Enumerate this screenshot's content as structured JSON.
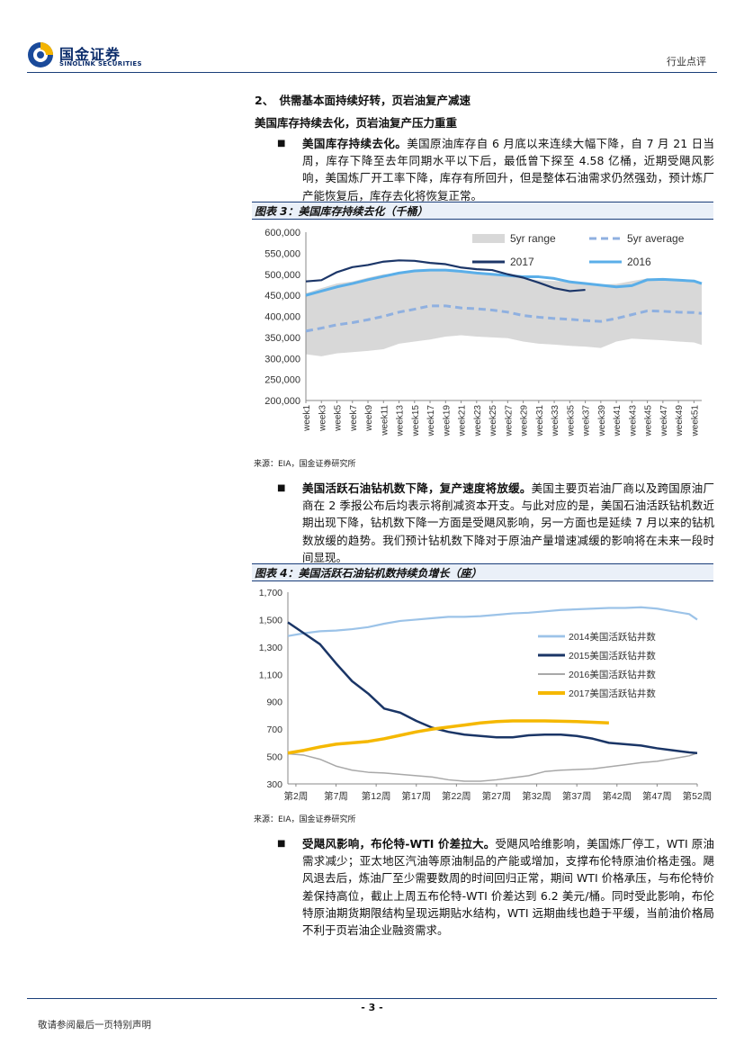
{
  "header": {
    "logo_cn": "国金证券",
    "logo_en": "SINOLINK SECURITIES",
    "report_type": "行业点评"
  },
  "section": {
    "title": "2、　供需基本面持续好转，页岩油复产减速",
    "subtitle": "美国库存持续去化，页岩油复产压力重重"
  },
  "para1": {
    "bold": "美国库存持续去化。",
    "text": "美国原油库存自 6 月底以来连续大幅下降，自 7 月 21 日当周，库存下降至去年同期水平以下后，最低曾下探至 4.58 亿桶，近期受飓风影响，美国炼厂开工率下降，库存有所回升，但是整体石油需求仍然强劲，预计炼厂产能恢复后，库存去化将恢复正常。"
  },
  "fig3": {
    "caption": "图表 3：美国库存持续去化（千桶）",
    "source": "来源：EIA，国金证券研究所"
  },
  "para2": {
    "bold": "美国活跃石油钻机数下降，复产速度将放缓。",
    "text": "美国主要页岩油厂商以及跨国原油厂商在 2 季报公布后均表示将削减资本开支。与此对应的是，美国石油活跃钻机数近期出现下降，钻机数下降一方面是受飓风影响，另一方面也是延续 7 月以来的钻机数放缓的趋势。我们预计钻机数下降对于原油产量增速减缓的影响将在未来一段时间显现。"
  },
  "fig4": {
    "caption": "图表 4：美国活跃石油钻机数持续负增长（座）",
    "source": "来源：EIA，国金证券研究所"
  },
  "para3": {
    "bold": "受飓风影响，布伦特-WTI 价差拉大。",
    "text": "受飓风哈维影响，美国炼厂停工，WTI 原油需求减少；亚太地区汽油等原油制品的产能或增加，支撑布伦特原油价格走强。飓风退去后，炼油厂至少需要数周的时间回归正常，期间 WTI 价格承压，与布伦特价差保持高位，截止上周五布伦特-WTI 价差达到 6.2 美元/桶。同时受此影响，布伦特原油期货期限结构呈现远期贴水结构，WTI 远期曲线也趋于平缓，当前油价格局不利于页岩油企业融资需求。"
  },
  "footer": {
    "page": "- 3 -",
    "note": "敬请参阅最后一页特别声明"
  },
  "colors": {
    "navy": "#1c3668",
    "light_blue": "#5aaee8",
    "dash_blue": "#8fb0e0",
    "band_gray": "#d8d8d8",
    "rig_2014": "#9cc3e8",
    "rig_2015": "#1a3566",
    "rig_2016": "#a8a8a8",
    "rig_2017": "#f5b800"
  },
  "chart_data": [
    {
      "type": "area",
      "title": "美国库存持续去化（千桶）",
      "ylim": [
        200000,
        600000
      ],
      "yticks": [
        200000,
        250000,
        300000,
        350000,
        400000,
        450000,
        500000,
        550000,
        600000
      ],
      "ytick_labels": [
        "200,000",
        "250,000",
        "300,000",
        "350,000",
        "400,000",
        "450,000",
        "500,000",
        "550,000",
        "600,000"
      ],
      "xtick_labels": [
        "week1",
        "week3",
        "week5",
        "week7",
        "week9",
        "week11",
        "week13",
        "week15",
        "week17",
        "week19",
        "week21",
        "week23",
        "week25",
        "week27",
        "week29",
        "week31",
        "week33",
        "week35",
        "week37",
        "week39",
        "week41",
        "week43",
        "week45",
        "week47",
        "week49",
        "week51"
      ],
      "legend": [
        "5yr range",
        "5yr average",
        "2017",
        "2016"
      ],
      "x": [
        1,
        3,
        5,
        7,
        9,
        11,
        13,
        15,
        17,
        19,
        21,
        23,
        25,
        27,
        29,
        31,
        33,
        35,
        37,
        39,
        41,
        43,
        45,
        47,
        49,
        51,
        52
      ],
      "series": [
        {
          "name": "5yr range low",
          "values": [
            310000,
            305000,
            312000,
            315000,
            318000,
            322000,
            335000,
            340000,
            345000,
            352000,
            355000,
            352000,
            350000,
            348000,
            340000,
            335000,
            333000,
            330000,
            328000,
            325000,
            340000,
            347000,
            345000,
            343000,
            340000,
            338000,
            332000
          ]
        },
        {
          "name": "5yr range high",
          "values": [
            455000,
            467000,
            478000,
            483000,
            492000,
            500000,
            503000,
            508000,
            512000,
            512000,
            508000,
            505000,
            500000,
            495000,
            490000,
            486000,
            484000,
            482000,
            480000,
            476000,
            477000,
            484000,
            490000,
            488000,
            486000,
            484000,
            480000
          ]
        },
        {
          "name": "5yr average",
          "values": [
            365000,
            372000,
            380000,
            385000,
            392000,
            400000,
            410000,
            417000,
            425000,
            425000,
            420000,
            418000,
            415000,
            410000,
            402000,
            398000,
            395000,
            393000,
            390000,
            388000,
            395000,
            404000,
            413000,
            412000,
            410000,
            409000,
            407000
          ]
        },
        {
          "name": "2017",
          "values": [
            483000,
            486000,
            505000,
            517000,
            522000,
            530000,
            533000,
            532000,
            527000,
            524000,
            516000,
            512000,
            510000,
            500000,
            492000,
            480000,
            467000,
            460000,
            463000,
            null,
            null,
            null,
            null,
            null,
            null,
            null,
            null
          ]
        },
        {
          "name": "2016",
          "values": [
            450000,
            460000,
            470000,
            478000,
            487000,
            495000,
            503000,
            508000,
            510000,
            510000,
            507000,
            503000,
            500000,
            497000,
            494000,
            494000,
            490000,
            482000,
            478000,
            474000,
            470000,
            473000,
            487000,
            488000,
            486000,
            484000,
            478000
          ]
        }
      ]
    },
    {
      "type": "line",
      "title": "美国活跃石油钻机数持续负增长（座）",
      "ylim": [
        300,
        1700
      ],
      "yticks": [
        300,
        500,
        700,
        900,
        1100,
        1300,
        1500,
        1700
      ],
      "ytick_labels": [
        "300",
        "500",
        "700",
        "900",
        "1,100",
        "1,300",
        "1,500",
        "1,700"
      ],
      "xtick_labels": [
        "第2周",
        "第7周",
        "第12周",
        "第17周",
        "第22周",
        "第27周",
        "第32周",
        "第37周",
        "第42周",
        "第47周",
        "第52周"
      ],
      "legend": [
        "2014美国活跃钻井数",
        "2015美国活跃钻井数",
        "2016美国活跃钻井数",
        "2017美国活跃钻井数"
      ],
      "x": [
        1,
        3,
        5,
        7,
        9,
        11,
        13,
        15,
        17,
        19,
        21,
        23,
        25,
        27,
        29,
        31,
        33,
        35,
        37,
        39,
        41,
        43,
        45,
        47,
        49,
        51,
        52
      ],
      "series": [
        {
          "name": "2014美国活跃钻井数",
          "values": [
            1380,
            1400,
            1415,
            1420,
            1430,
            1445,
            1470,
            1490,
            1500,
            1510,
            1520,
            1520,
            1525,
            1535,
            1545,
            1550,
            1560,
            1570,
            1575,
            1580,
            1585,
            1585,
            1590,
            1580,
            1560,
            1540,
            1500
          ]
        },
        {
          "name": "2015美国活跃钻井数",
          "values": [
            1480,
            1400,
            1320,
            1180,
            1050,
            960,
            850,
            820,
            760,
            710,
            680,
            660,
            650,
            640,
            640,
            655,
            660,
            660,
            650,
            630,
            600,
            590,
            580,
            560,
            545,
            530,
            525
          ]
        },
        {
          "name": "2016美国活跃钻井数",
          "values": [
            520,
            510,
            480,
            430,
            400,
            385,
            380,
            370,
            360,
            350,
            330,
            320,
            320,
            330,
            345,
            360,
            390,
            400,
            405,
            410,
            425,
            440,
            455,
            465,
            485,
            505,
            525
          ]
        },
        {
          "name": "2017美国活跃钻井数",
          "values": [
            525,
            545,
            570,
            590,
            600,
            610,
            630,
            655,
            680,
            700,
            715,
            730,
            745,
            755,
            760,
            760,
            760,
            758,
            755,
            750,
            745,
            null,
            null,
            null,
            null,
            null,
            null
          ]
        }
      ]
    }
  ]
}
